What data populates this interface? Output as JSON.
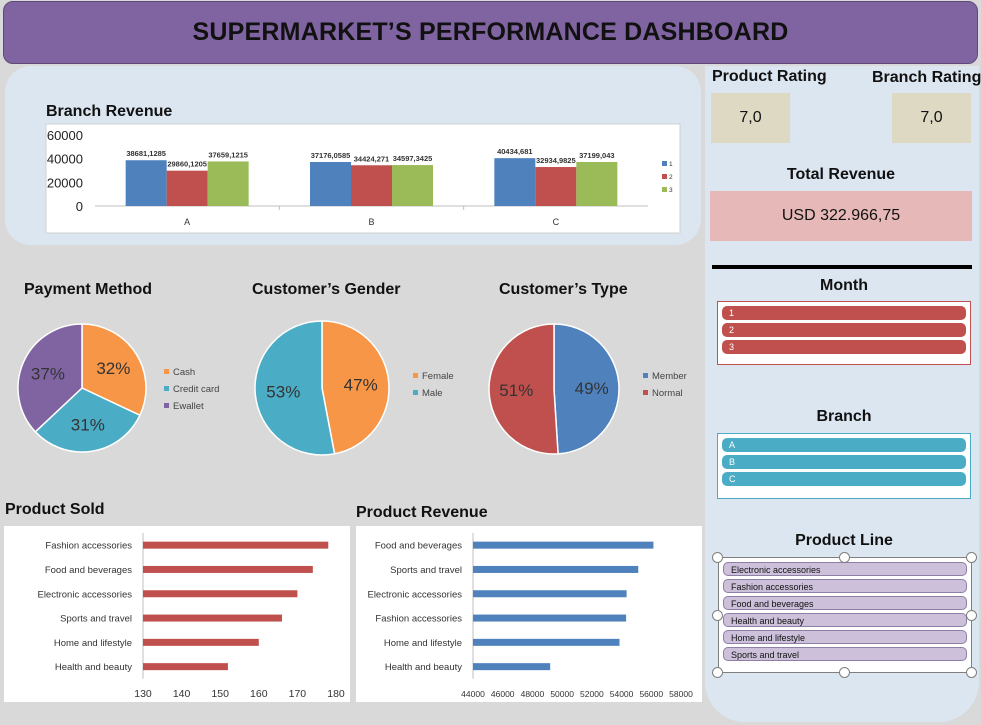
{
  "header": {
    "title": "SUPERMARKET’S PERFORMANCE DASHBOARD"
  },
  "kpi": {
    "product_rating_label": "Product Rating",
    "product_rating_value": "7,0",
    "branch_rating_label": "Branch Rating",
    "branch_rating_value": "7,0",
    "total_revenue_label": "Total Revenue",
    "total_revenue_value": "USD 322.966,75"
  },
  "slicers": {
    "month": {
      "title": "Month",
      "items": [
        "1",
        "2",
        "3"
      ]
    },
    "branch": {
      "title": "Branch",
      "items": [
        "A",
        "B",
        "C"
      ]
    },
    "product_line": {
      "title": "Product Line",
      "items": [
        "Electronic accessories",
        "Fashion accessories",
        "Food and beverages",
        "Health and beauty",
        "Home and lifestyle",
        "Sports and travel"
      ]
    }
  },
  "colors": {
    "blue": "#4f81bd",
    "red": "#c0504d",
    "green": "#9bbb59",
    "orange": "#f79646",
    "teal": "#4bacc6",
    "purple": "#8064a2",
    "header": "#8064a2",
    "panel": "#dce6f1",
    "tile": "#ddd9c3",
    "revenue_tile": "#e6b9b8"
  },
  "chart_data": [
    {
      "id": "branch_revenue",
      "type": "bar",
      "title": "Branch Revenue",
      "categories": [
        "A",
        "B",
        "C"
      ],
      "series": [
        {
          "name": "1",
          "values": [
            38681.1285,
            37176.0585,
            40434.681
          ],
          "labels": [
            "38681,1285",
            "37176,0585",
            "40434,681"
          ]
        },
        {
          "name": "2",
          "values": [
            29860.1205,
            34424.271,
            32934.9825
          ],
          "labels": [
            "29860,1205",
            "34424,271",
            "32934,9825"
          ]
        },
        {
          "name": "3",
          "values": [
            37659.1215,
            34597.3425,
            37199.043
          ],
          "labels": [
            "37659,1215",
            "34597,3425",
            "37199,043"
          ]
        }
      ],
      "ylim": [
        0,
        60000
      ],
      "yticks": [
        "0",
        "20000",
        "40000",
        "60000"
      ],
      "legend": "right"
    },
    {
      "id": "payment_method",
      "type": "pie",
      "title": "Payment Method",
      "labels": [
        "Cash",
        "Credit card",
        "Ewallet"
      ],
      "values": [
        32,
        31,
        37
      ],
      "value_labels": [
        "32%",
        "31%",
        "37%"
      ],
      "legend": "right"
    },
    {
      "id": "customer_gender",
      "type": "pie",
      "title": "Customer’s Gender",
      "labels": [
        "Female",
        "Male"
      ],
      "values": [
        47,
        53
      ],
      "value_labels": [
        "47%",
        "53%"
      ],
      "legend": "right"
    },
    {
      "id": "customer_type",
      "type": "pie",
      "title": "Customer’s Type",
      "labels": [
        "Member",
        "Normal"
      ],
      "values": [
        49,
        51
      ],
      "value_labels": [
        "49%",
        "51%"
      ],
      "legend": "right"
    },
    {
      "id": "product_sold",
      "type": "bar",
      "orientation": "horizontal",
      "title": "Product Sold",
      "categories": [
        "Fashion accessories",
        "Food and beverages",
        "Electronic accessories",
        "Sports and travel",
        "Home and lifestyle",
        "Health and beauty"
      ],
      "values": [
        178,
        174,
        170,
        166,
        160,
        152
      ],
      "xlim": [
        130,
        180
      ],
      "xticks": [
        "130",
        "140",
        "150",
        "160",
        "170",
        "180"
      ]
    },
    {
      "id": "product_revenue",
      "type": "bar",
      "orientation": "horizontal",
      "title": "Product Revenue",
      "categories": [
        "Food and beverages",
        "Sports and travel",
        "Electronic accessories",
        "Fashion accessories",
        "Home and lifestyle",
        "Health and beauty"
      ],
      "values": [
        56144.8,
        55122.8,
        54337.5,
        54305.9,
        53861.9,
        49193.7
      ],
      "xlim": [
        44000,
        58000
      ],
      "xticks": [
        "44000",
        "46000",
        "48000",
        "50000",
        "52000",
        "54000",
        "56000",
        "58000"
      ]
    }
  ]
}
